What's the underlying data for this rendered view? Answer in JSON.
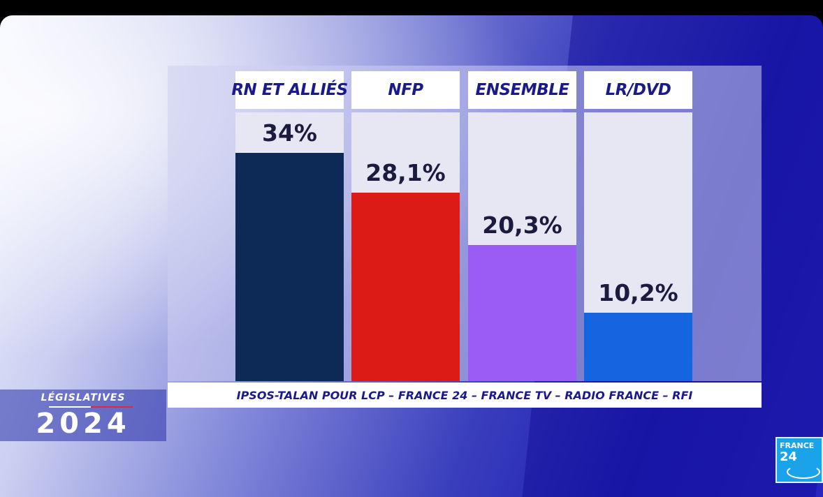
{
  "chart_data": {
    "type": "bar",
    "categories": [
      "RN ET ALLIÉS",
      "NFP",
      "ENSEMBLE",
      "LR/DVD"
    ],
    "values": [
      34,
      28.1,
      20.3,
      10.2
    ],
    "value_labels": [
      "34%",
      "28,1%",
      "20,3%",
      "10,2%"
    ],
    "colors": [
      "#0d2a57",
      "#dc1b17",
      "#9b5cf5",
      "#1565e0"
    ],
    "ylim": [
      0,
      40
    ],
    "source": "IPSOS-TALAN POUR LCP – FRANCE 24 – FRANCE TV – RADIO FRANCE – RFI"
  },
  "badge": {
    "line1": "LÉGISLATIVES",
    "line2": "2024"
  },
  "logo": {
    "line1": "FRANCE",
    "line2": "24"
  }
}
